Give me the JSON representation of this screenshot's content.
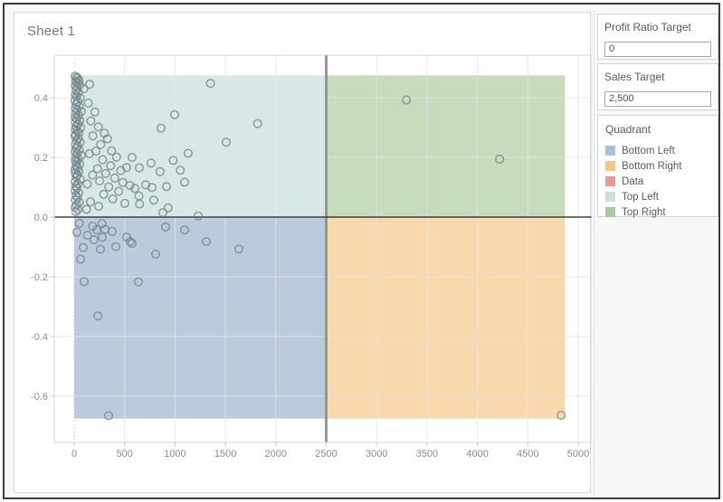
{
  "sheet": {
    "title": "Sheet 1"
  },
  "params": {
    "profit_ratio_target": {
      "label": "Profit Ratio Target",
      "value": "0"
    },
    "sales_target": {
      "label": "Sales Target",
      "value": "2,500"
    }
  },
  "legend": {
    "title": "Quadrant",
    "items": [
      {
        "label": "Bottom Left",
        "color": "#a9c0d9"
      },
      {
        "label": "Bottom Right",
        "color": "#f5c78e"
      },
      {
        "label": "Data",
        "color": "#f19494"
      },
      {
        "label": "Top Left",
        "color": "#c9e0df"
      },
      {
        "label": "Top Right",
        "color": "#a6cc9c"
      }
    ]
  },
  "chart_data": {
    "type": "scatter",
    "title": "Sheet 1",
    "xlabel": "",
    "ylabel": "",
    "xlim": [
      -200,
      5135
    ],
    "ylim": [
      -0.75,
      0.55
    ],
    "grid": true,
    "x_ticks": [
      0,
      500,
      1000,
      1500,
      2000,
      2500,
      3000,
      3500,
      4000,
      4500,
      5000
    ],
    "y_ticks": [
      0.4,
      0.2,
      0.0,
      -0.2,
      -0.4,
      -0.6
    ],
    "y_tick_labels": [
      "0.4",
      "0.2",
      "0.0",
      "-0.2",
      "-0.4",
      "-0.6"
    ],
    "reference_lines": {
      "vertical_x": 2500,
      "horizontal_y": 0
    },
    "quadrant_bands": {
      "x_range": [
        0,
        4870
      ],
      "y_range": [
        -0.675,
        0.475
      ],
      "colors": {
        "top_left": "#d8e8e6",
        "top_right": "#c6dcbd",
        "bottom_left": "#bccbdc",
        "bottom_right": "#f8d9ae"
      }
    },
    "marker": {
      "shape": "open-circle",
      "color": "#74878a",
      "radius": 4.3
    },
    "points": [
      [
        8,
        0.472
      ],
      [
        22,
        0.468
      ],
      [
        36,
        0.465
      ],
      [
        14,
        0.455
      ],
      [
        30,
        0.451
      ],
      [
        48,
        0.458
      ],
      [
        10,
        0.44
      ],
      [
        28,
        0.436
      ],
      [
        55,
        0.443
      ],
      [
        18,
        0.424
      ],
      [
        40,
        0.418
      ],
      [
        12,
        0.409
      ],
      [
        26,
        0.403
      ],
      [
        60,
        0.399
      ],
      [
        8,
        0.391
      ],
      [
        34,
        0.386
      ],
      [
        18,
        0.377
      ],
      [
        50,
        0.371
      ],
      [
        10,
        0.364
      ],
      [
        30,
        0.359
      ],
      [
        70,
        0.354
      ],
      [
        15,
        0.347
      ],
      [
        42,
        0.341
      ],
      [
        8,
        0.334
      ],
      [
        25,
        0.329
      ],
      [
        55,
        0.323
      ],
      [
        12,
        0.317
      ],
      [
        38,
        0.311
      ],
      [
        20,
        0.304
      ],
      [
        65,
        0.299
      ],
      [
        10,
        0.294
      ],
      [
        30,
        0.288
      ],
      [
        48,
        0.283
      ],
      [
        15,
        0.277
      ],
      [
        8,
        0.271
      ],
      [
        40,
        0.264
      ],
      [
        22,
        0.257
      ],
      [
        60,
        0.251
      ],
      [
        12,
        0.244
      ],
      [
        33,
        0.238
      ],
      [
        18,
        0.231
      ],
      [
        50,
        0.225
      ],
      [
        8,
        0.219
      ],
      [
        28,
        0.213
      ],
      [
        70,
        0.207
      ],
      [
        15,
        0.201
      ],
      [
        40,
        0.195
      ],
      [
        10,
        0.189
      ],
      [
        25,
        0.183
      ],
      [
        55,
        0.177
      ],
      [
        18,
        0.171
      ],
      [
        35,
        0.165
      ],
      [
        8,
        0.159
      ],
      [
        45,
        0.153
      ],
      [
        12,
        0.147
      ],
      [
        30,
        0.141
      ],
      [
        20,
        0.134
      ],
      [
        60,
        0.127
      ],
      [
        10,
        0.119
      ],
      [
        38,
        0.111
      ],
      [
        15,
        0.104
      ],
      [
        25,
        0.097
      ],
      [
        8,
        0.089
      ],
      [
        45,
        0.081
      ],
      [
        18,
        0.073
      ],
      [
        32,
        0.065
      ],
      [
        12,
        0.057
      ],
      [
        50,
        0.049
      ],
      [
        22,
        0.041
      ],
      [
        8,
        0.033
      ],
      [
        35,
        0.025
      ],
      [
        15,
        0.018
      ],
      [
        153,
        0.445
      ],
      [
        95,
        0.43
      ],
      [
        140,
        0.382
      ],
      [
        205,
        0.352
      ],
      [
        165,
        0.322
      ],
      [
        240,
        0.302
      ],
      [
        185,
        0.272
      ],
      [
        300,
        0.281
      ],
      [
        262,
        0.243
      ],
      [
        215,
        0.221
      ],
      [
        330,
        0.262
      ],
      [
        372,
        0.222
      ],
      [
        150,
        0.212
      ],
      [
        282,
        0.192
      ],
      [
        420,
        0.201
      ],
      [
        362,
        0.172
      ],
      [
        232,
        0.162
      ],
      [
        462,
        0.156
      ],
      [
        312,
        0.146
      ],
      [
        182,
        0.141
      ],
      [
        520,
        0.166
      ],
      [
        574,
        0.2
      ],
      [
        646,
        0.165
      ],
      [
        402,
        0.131
      ],
      [
        252,
        0.121
      ],
      [
        482,
        0.116
      ],
      [
        130,
        0.111
      ],
      [
        552,
        0.106
      ],
      [
        342,
        0.101
      ],
      [
        602,
        0.096
      ],
      [
        709,
        0.108
      ],
      [
        772,
        0.099
      ],
      [
        916,
        0.102
      ],
      [
        1095,
        0.117
      ],
      [
        442,
        0.086
      ],
      [
        292,
        0.076
      ],
      [
        642,
        0.071
      ],
      [
        382,
        0.061
      ],
      [
        502,
        0.046
      ],
      [
        648,
        0.044
      ],
      [
        790,
        0.057
      ],
      [
        162,
        0.051
      ],
      [
        242,
        0.036
      ],
      [
        880,
        0.015
      ],
      [
        932,
        0.031
      ],
      [
        122,
        0.026
      ],
      [
        1230,
        0.004
      ],
      [
        996,
        0.343
      ],
      [
        862,
        0.298
      ],
      [
        1352,
        0.448
      ],
      [
        1820,
        0.313
      ],
      [
        1508,
        0.251
      ],
      [
        1130,
        0.214
      ],
      [
        1052,
        0.157
      ],
      [
        982,
        0.19
      ],
      [
        852,
        0.152
      ],
      [
        762,
        0.181
      ],
      [
        51,
        -0.021
      ],
      [
        27,
        -0.051
      ],
      [
        276,
        -0.022
      ],
      [
        224,
        -0.043
      ],
      [
        305,
        -0.041
      ],
      [
        377,
        -0.048
      ],
      [
        197,
        -0.076
      ],
      [
        278,
        -0.068
      ],
      [
        521,
        -0.067
      ],
      [
        556,
        -0.082
      ],
      [
        260,
        -0.108
      ],
      [
        413,
        -0.099
      ],
      [
        63,
        -0.141
      ],
      [
        99,
        -0.216
      ],
      [
        637,
        -0.217
      ],
      [
        907,
        -0.033
      ],
      [
        1095,
        -0.043
      ],
      [
        1311,
        -0.082
      ],
      [
        1634,
        -0.107
      ],
      [
        808,
        -0.124
      ],
      [
        574,
        -0.088
      ],
      [
        235,
        -0.331
      ],
      [
        341,
        -0.665
      ],
      [
        132,
        -0.061
      ],
      [
        182,
        -0.031
      ],
      [
        90,
        -0.102
      ],
      [
        3295,
        0.392
      ],
      [
        4220,
        0.194
      ],
      [
        4830,
        -0.664
      ]
    ]
  },
  "colors": {
    "zero_line": "#414141",
    "reference_line": "#8f8f8f",
    "gridline": "#e6e6e6",
    "axis_border": "#d4d4d4",
    "tick_label": "#8c8c8c"
  }
}
